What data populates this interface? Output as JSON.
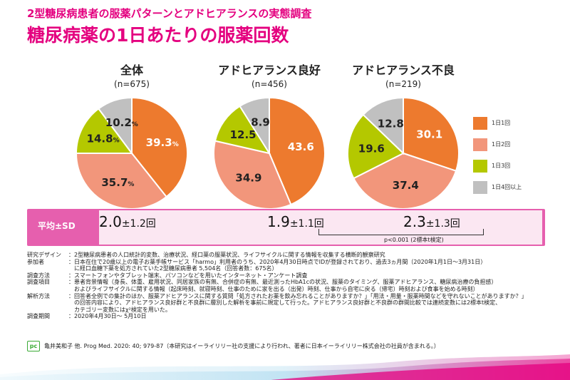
{
  "header": {
    "subtitle": "2型糖尿病患者の服薬パターンとアドヒアランスの実態調査",
    "title": "糖尿病薬の1日あたりの服薬回数"
  },
  "colors": {
    "once": "#ed7a2e",
    "twice": "#f2967b",
    "thrice": "#b4c800",
    "four_plus": "#c0c0c0",
    "accent": "#e4007f",
    "band": "#e65fae"
  },
  "chart_data": [
    {
      "type": "pie",
      "title": "全体",
      "n": "(n=675)",
      "categories": [
        "1日1回",
        "1日2回",
        "1日3回",
        "1日4回以上"
      ],
      "values": [
        39.3,
        35.7,
        14.8,
        10.2
      ],
      "labels": [
        "39.3",
        "35.7",
        "14.8",
        "10.2"
      ],
      "unit": "%"
    },
    {
      "type": "pie",
      "title": "アドヒアランス良好",
      "n": "(n=456)",
      "categories": [
        "1日1回",
        "1日2回",
        "1日3回",
        "1日4回以上"
      ],
      "values": [
        43.6,
        34.9,
        12.5,
        8.9
      ],
      "labels": [
        "43.6",
        "34.9",
        "12.5",
        "8.9"
      ],
      "unit": ""
    },
    {
      "type": "pie",
      "title": "アドヒアランス不良",
      "n": "(n=219)",
      "categories": [
        "1日1回",
        "1日2回",
        "1日3回",
        "1日4回以上"
      ],
      "values": [
        30.1,
        37.4,
        19.6,
        12.8
      ],
      "labels": [
        "30.1",
        "37.4",
        "19.6",
        "12.8"
      ],
      "unit": ""
    }
  ],
  "legend": [
    "1日1回",
    "1日2回",
    "1日3回",
    "1日4回以上"
  ],
  "average": {
    "label": "平均±SD",
    "overall_mean": "2.0",
    "overall_sd": "±1.2回",
    "good_mean": "1.9",
    "good_sd": "±1.1回",
    "poor_mean": "2.3",
    "poor_sd": "±1.3回",
    "p_value": "p<0.001 (2標本t検定)"
  },
  "info": [
    {
      "label": "研究デザイン",
      "lines": [
        "：2型糖尿病患者の人口統計的変数、治療状況、経口薬の服薬状況、ライフサイクルに関する情報を収集する横断的観察研究"
      ]
    },
    {
      "label": "参加者",
      "lines": [
        "：日本在住で20歳以上の電子お薬手帳サービス「harmo」利用者のうち、2020年4月30日時点でIDが登録されており、過去3ヵ月間（2020年1月1日～3月31日）",
        "に経口血糖下薬を処方されていた2型糖尿病患者 5,504名（回答者数：675名）"
      ]
    },
    {
      "label": "調査方法",
      "lines": [
        "：スマートフォンやタブレット端末、パソコンなどを用いたインターネット・アンケート調査"
      ]
    },
    {
      "label": "調査項目",
      "lines": [
        "：患者背景情報（身長、体重、雇用状況、同居家族の有無、合併症の有無、最近測ったHbA1cの状況、服薬のタイミング、服薬アドヒアランス、糖尿病治療の負担感）",
        "およびライフサイクルに関する情報（起床時刻、就寝時刻、仕事のために家を出る（出発）時刻、仕事から自宅に戻る（帰宅）時刻および食事を始める時刻）"
      ]
    },
    {
      "label": "解析方法",
      "lines": [
        "：回答者全例での集計のほか、服薬アドヒアランスに関する質問「処方されたお薬を飲み忘れることがありますか？」「用法・用量・服薬時間などを守れないことがありますか？」",
        "の回答内容により、アドヒアランス良好群と不良群に層別した解析を事前に規定して行った。アドヒアランス良好群と不良群の群間比較では連続変数には2標本t検定、",
        "カテゴリー変数にはχ²検定を用いた。"
      ]
    },
    {
      "label": "調査期間",
      "lines": [
        "：2020年4月30日～ 5月10日"
      ]
    }
  ],
  "reference": {
    "logo": "pc",
    "text": "亀井美和子 他. Prog Med. 2020: 40; 979-87（本研究はイーライリリー社の支援により行われ、著者に日本イーライリリー株式会社の社員が含まれる。）"
  }
}
